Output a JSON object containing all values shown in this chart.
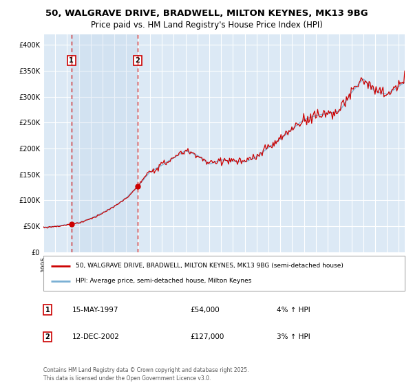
{
  "title_line1": "50, WALGRAVE DRIVE, BRADWELL, MILTON KEYNES, MK13 9BG",
  "title_line2": "Price paid vs. HM Land Registry's House Price Index (HPI)",
  "legend_line1": "50, WALGRAVE DRIVE, BRADWELL, MILTON KEYNES, MK13 9BG (semi-detached house)",
  "legend_line2": "HPI: Average price, semi-detached house, Milton Keynes",
  "footer": "Contains HM Land Registry data © Crown copyright and database right 2025.\nThis data is licensed under the Open Government Licence v3.0.",
  "purchase1_date": "15-MAY-1997",
  "purchase1_price": 54000,
  "purchase1_hpi": "4% ↑ HPI",
  "purchase2_date": "12-DEC-2002",
  "purchase2_price": 127000,
  "purchase2_hpi": "3% ↑ HPI",
  "purchase1_year": 1997.37,
  "purchase2_year": 2002.95,
  "red_color": "#cc0000",
  "blue_color": "#7ab0d4",
  "background_color": "#dce9f5",
  "ylim_max": 420000,
  "xlim_start": 1995.0,
  "xlim_end": 2025.5
}
